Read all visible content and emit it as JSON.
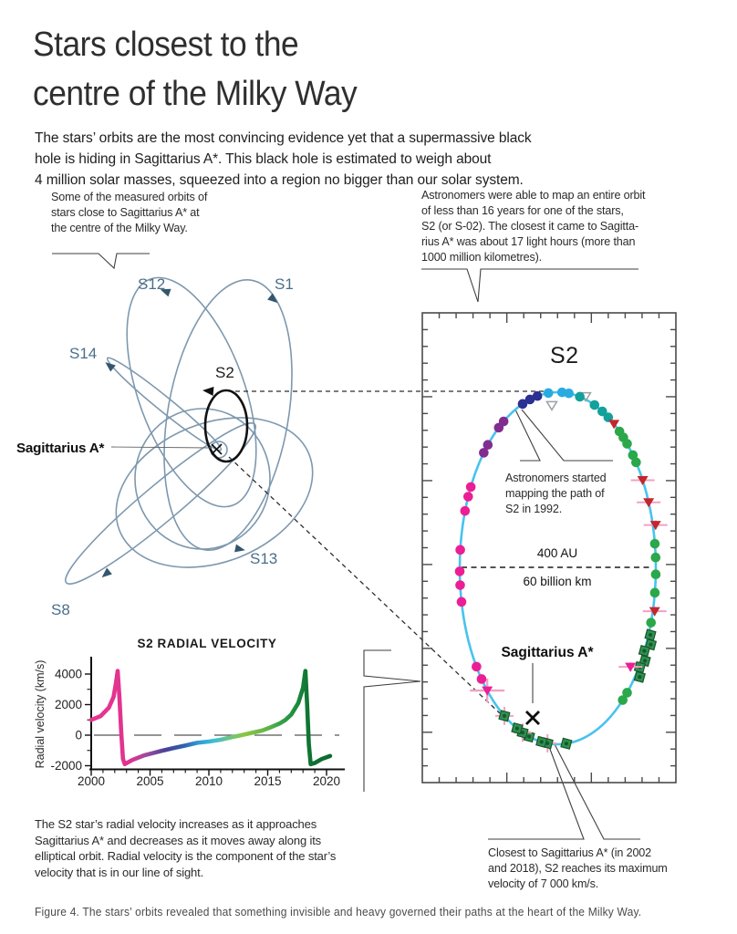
{
  "title": {
    "lines": [
      "Stars closest to the",
      "centre of the Milky Way"
    ]
  },
  "intro": {
    "lines": [
      "The stars’ orbits are the most convincing evidence yet that a supermassive black",
      "hole is hiding in Sagittarius A*. This black hole is estimated to weigh about",
      "4 million solar masses, squeezed into a region no bigger than our solar system."
    ]
  },
  "left_note": {
    "lines": [
      "Some of the measured orbits of",
      "stars close to Sagittarius A* at",
      "the centre of the Milky Way."
    ]
  },
  "right_note": {
    "lines": [
      "Astronomers were able to map an entire orbit",
      "of less than 16 years for one of the stars,",
      "S2 (or S-02). The closest it came to Sagitta-",
      "rius A* was about 17 light hours (more than",
      "1000 million kilometres)."
    ]
  },
  "orbit_map": {
    "labels": {
      "s12": "S12",
      "s1": "S1",
      "s14": "S14",
      "s2": "S2",
      "sgr_a": "Sagittarius A*",
      "s13": "S13",
      "s8": "S8"
    }
  },
  "s2_panel": {
    "title": "S2",
    "scale_top": "400 AU",
    "scale_bottom": "60 billion km",
    "sgr_label": "Sagittarius A*",
    "mapping_note": {
      "lines": [
        "Astronomers started",
        "mapping the path of",
        "S2 in 1992."
      ]
    },
    "points": [
      {
        "a": 339,
        "t": "c",
        "c": "navy"
      },
      {
        "a": 343.5,
        "t": "c",
        "c": "navy"
      },
      {
        "a": 348,
        "t": "c",
        "c": "navy"
      },
      {
        "a": 354.5,
        "t": "c",
        "c": "cyan"
      },
      {
        "a": 2.5,
        "t": "c",
        "c": "cyan"
      },
      {
        "a": 6.5,
        "t": "c",
        "c": "cyan"
      },
      {
        "a": 356,
        "t": "o",
        "c": "gray",
        "d": -14
      },
      {
        "a": 16,
        "t": "o",
        "c": "gray",
        "d": 3
      },
      {
        "a": 13,
        "t": "c",
        "c": "teal"
      },
      {
        "a": 22,
        "t": "c",
        "c": "teal"
      },
      {
        "a": 27,
        "t": "c",
        "c": "teal"
      },
      {
        "a": 31,
        "t": "c",
        "c": "teal"
      },
      {
        "a": 35,
        "t": "t",
        "c": "red"
      },
      {
        "a": 39,
        "t": "c",
        "c": "green"
      },
      {
        "a": 42,
        "t": "c",
        "c": "green"
      },
      {
        "a": 45,
        "t": "c",
        "c": "green"
      },
      {
        "a": 50,
        "t": "c",
        "c": "green"
      },
      {
        "a": 53,
        "t": "c",
        "c": "green"
      },
      {
        "a": 60,
        "t": "t",
        "c": "red",
        "e": "h"
      },
      {
        "a": 68,
        "t": "t",
        "c": "red",
        "e": "h"
      },
      {
        "a": 76,
        "t": "t",
        "c": "red",
        "e": "h",
        "d": 3
      },
      {
        "a": 82,
        "t": "c",
        "c": "green"
      },
      {
        "a": 86.5,
        "t": "c",
        "c": "green"
      },
      {
        "a": 92,
        "t": "c",
        "c": "green"
      },
      {
        "a": 98,
        "t": "c",
        "c": "green"
      },
      {
        "a": 104,
        "t": "t",
        "c": "red",
        "e": "h",
        "d": 2
      },
      {
        "a": 108,
        "t": "c",
        "c": "green"
      },
      {
        "a": 112,
        "t": "s",
        "c": "dgreen",
        "d": 2
      },
      {
        "a": 115,
        "t": "s",
        "c": "dgreen",
        "d": 5
      },
      {
        "a": 118,
        "t": "s",
        "c": "dgreen"
      },
      {
        "a": 121,
        "t": "s",
        "c": "dgreen",
        "d": 4
      },
      {
        "a": 124,
        "t": "s",
        "c": "dgreen",
        "d": 1
      },
      {
        "a": 127,
        "t": "s",
        "c": "dgreen",
        "d": 5
      },
      {
        "a": 126,
        "t": "t",
        "c": "magenta",
        "d": -9,
        "e": "h"
      },
      {
        "a": 135,
        "t": "c",
        "c": "green"
      },
      {
        "a": 138.5,
        "t": "c",
        "c": "green"
      },
      {
        "a": 175,
        "t": "s",
        "c": "dgreen"
      },
      {
        "a": 186,
        "t": "s",
        "c": "dgreen",
        "e": "x"
      },
      {
        "a": 189.5,
        "t": "s",
        "c": "dgreen"
      },
      {
        "a": 197,
        "t": "s",
        "c": "dgreen"
      },
      {
        "a": 201,
        "t": "s",
        "c": "dgreen",
        "e": "x"
      },
      {
        "a": 204.5,
        "t": "s",
        "c": "dgreen"
      },
      {
        "a": 213,
        "t": "s",
        "c": "dgreen",
        "e": "x"
      },
      {
        "a": 226,
        "t": "t",
        "c": "magenta",
        "e": "X"
      },
      {
        "a": 231,
        "t": "c",
        "c": "magenta"
      },
      {
        "a": 236,
        "t": "c",
        "c": "magenta"
      },
      {
        "a": 259,
        "t": "c",
        "c": "magenta"
      },
      {
        "a": 264.5,
        "t": "c",
        "c": "magenta"
      },
      {
        "a": 269,
        "t": "c",
        "c": "magenta"
      },
      {
        "a": 276,
        "t": "c",
        "c": "magenta"
      },
      {
        "a": 289,
        "t": "c",
        "c": "magenta"
      },
      {
        "a": 294,
        "t": "c",
        "c": "magenta"
      },
      {
        "a": 297.5,
        "t": "c",
        "c": "magenta"
      },
      {
        "a": 311,
        "t": "c",
        "c": "purple"
      },
      {
        "a": 314.5,
        "t": "c",
        "c": "purple"
      },
      {
        "a": 323,
        "t": "c",
        "c": "purple"
      },
      {
        "a": 326.5,
        "t": "c",
        "c": "purple"
      }
    ]
  },
  "closest_note": {
    "lines": [
      "Closest to Sagittarius A* (in 2002",
      "and 2018), S2 reaches its maximum",
      "velocity of 7 000 km/s."
    ]
  },
  "rv_note": {
    "lines": [
      "The S2 star’s radial velocity increases as it approaches",
      "Sagittarius A* and decreases as it moves away along its",
      "elliptical orbit. Radial velocity is the component of the star’s",
      "velocity that is in our line of sight."
    ]
  },
  "figure_caption": "Figure 4. The stars’ orbits revealed that something invisible and heavy governed their paths at the heart of the Milky Way.",
  "chart_data": {
    "type": "line",
    "title": "S2 RADIAL VELOCITY",
    "xlabel": "",
    "ylabel": "Radial velocity (km/s)",
    "x_ticks": [
      2000,
      2005,
      2010,
      2015,
      2020
    ],
    "y_ticks": [
      4000,
      2000,
      0,
      -2000
    ],
    "xlim": [
      2000,
      2021.5
    ],
    "ylim": [
      -2240,
      5075
    ],
    "grid": false,
    "zero_line": true,
    "legend": "none",
    "series": [
      {
        "name": "S2 radial velocity (km/s)",
        "points": [
          [
            2000,
            1000
          ],
          [
            2000.8,
            1250
          ],
          [
            2001.5,
            1800
          ],
          [
            2001.9,
            2500
          ],
          [
            2002.1,
            3400
          ],
          [
            2002.25,
            4200
          ],
          [
            2002.4,
            2400
          ],
          [
            2002.55,
            200
          ],
          [
            2002.7,
            -1550
          ],
          [
            2002.85,
            -1900
          ],
          [
            2003.5,
            -1620
          ],
          [
            2004.5,
            -1320
          ],
          [
            2005.2,
            -1180
          ],
          [
            2006,
            -1020
          ],
          [
            2007,
            -840
          ],
          [
            2008,
            -680
          ],
          [
            2009,
            -500
          ],
          [
            2010,
            -420
          ],
          [
            2011,
            -300
          ],
          [
            2012,
            -120
          ],
          [
            2012.5,
            -40
          ],
          [
            2013.2,
            80
          ],
          [
            2014.5,
            300
          ],
          [
            2015.2,
            500
          ],
          [
            2016,
            760
          ],
          [
            2016.5,
            1000
          ],
          [
            2017,
            1350
          ],
          [
            2017.6,
            2100
          ],
          [
            2018,
            3100
          ],
          [
            2018.2,
            4200
          ],
          [
            2018.35,
            2000
          ],
          [
            2018.5,
            -600
          ],
          [
            2018.65,
            -1900
          ],
          [
            2019,
            -1820
          ],
          [
            2019.6,
            -1560
          ],
          [
            2020.3,
            -1360
          ]
        ]
      }
    ],
    "gradient_stops": [
      [
        2000,
        "#e8368f"
      ],
      [
        2003.3,
        "#e0338f"
      ],
      [
        2004.8,
        "#9c4a9e"
      ],
      [
        2006.3,
        "#4b4098"
      ],
      [
        2007.8,
        "#2f5fae"
      ],
      [
        2009.2,
        "#2f9fd4"
      ],
      [
        2010.4,
        "#3bbdd9"
      ],
      [
        2011.6,
        "#66c48b"
      ],
      [
        2013,
        "#8cc63f"
      ],
      [
        2014.6,
        "#6ab947"
      ],
      [
        2016.2,
        "#33a048"
      ],
      [
        2017.5,
        "#1b8a3c"
      ],
      [
        2018.4,
        "#0f7433"
      ],
      [
        2020.3,
        "#0d6b2f"
      ]
    ]
  },
  "colors": {
    "navy": "#2b3092",
    "cyan": "#29abe2",
    "teal": "#12a19b",
    "green": "#2aa84a",
    "dgreen": "#2f9150",
    "dgreen_edge": "#17572b",
    "red": "#c1272d",
    "magenta": "#ec1e96",
    "purple": "#812d90",
    "pink_err": "#f2a0c5",
    "gray_tri": "#9aa0a6",
    "orbit_cyan": "#48c3ee",
    "steel": "#7d98ae",
    "steel_dark": "#33566e",
    "frame": "#4a4a4a",
    "callout": "#3f3f3f"
  }
}
